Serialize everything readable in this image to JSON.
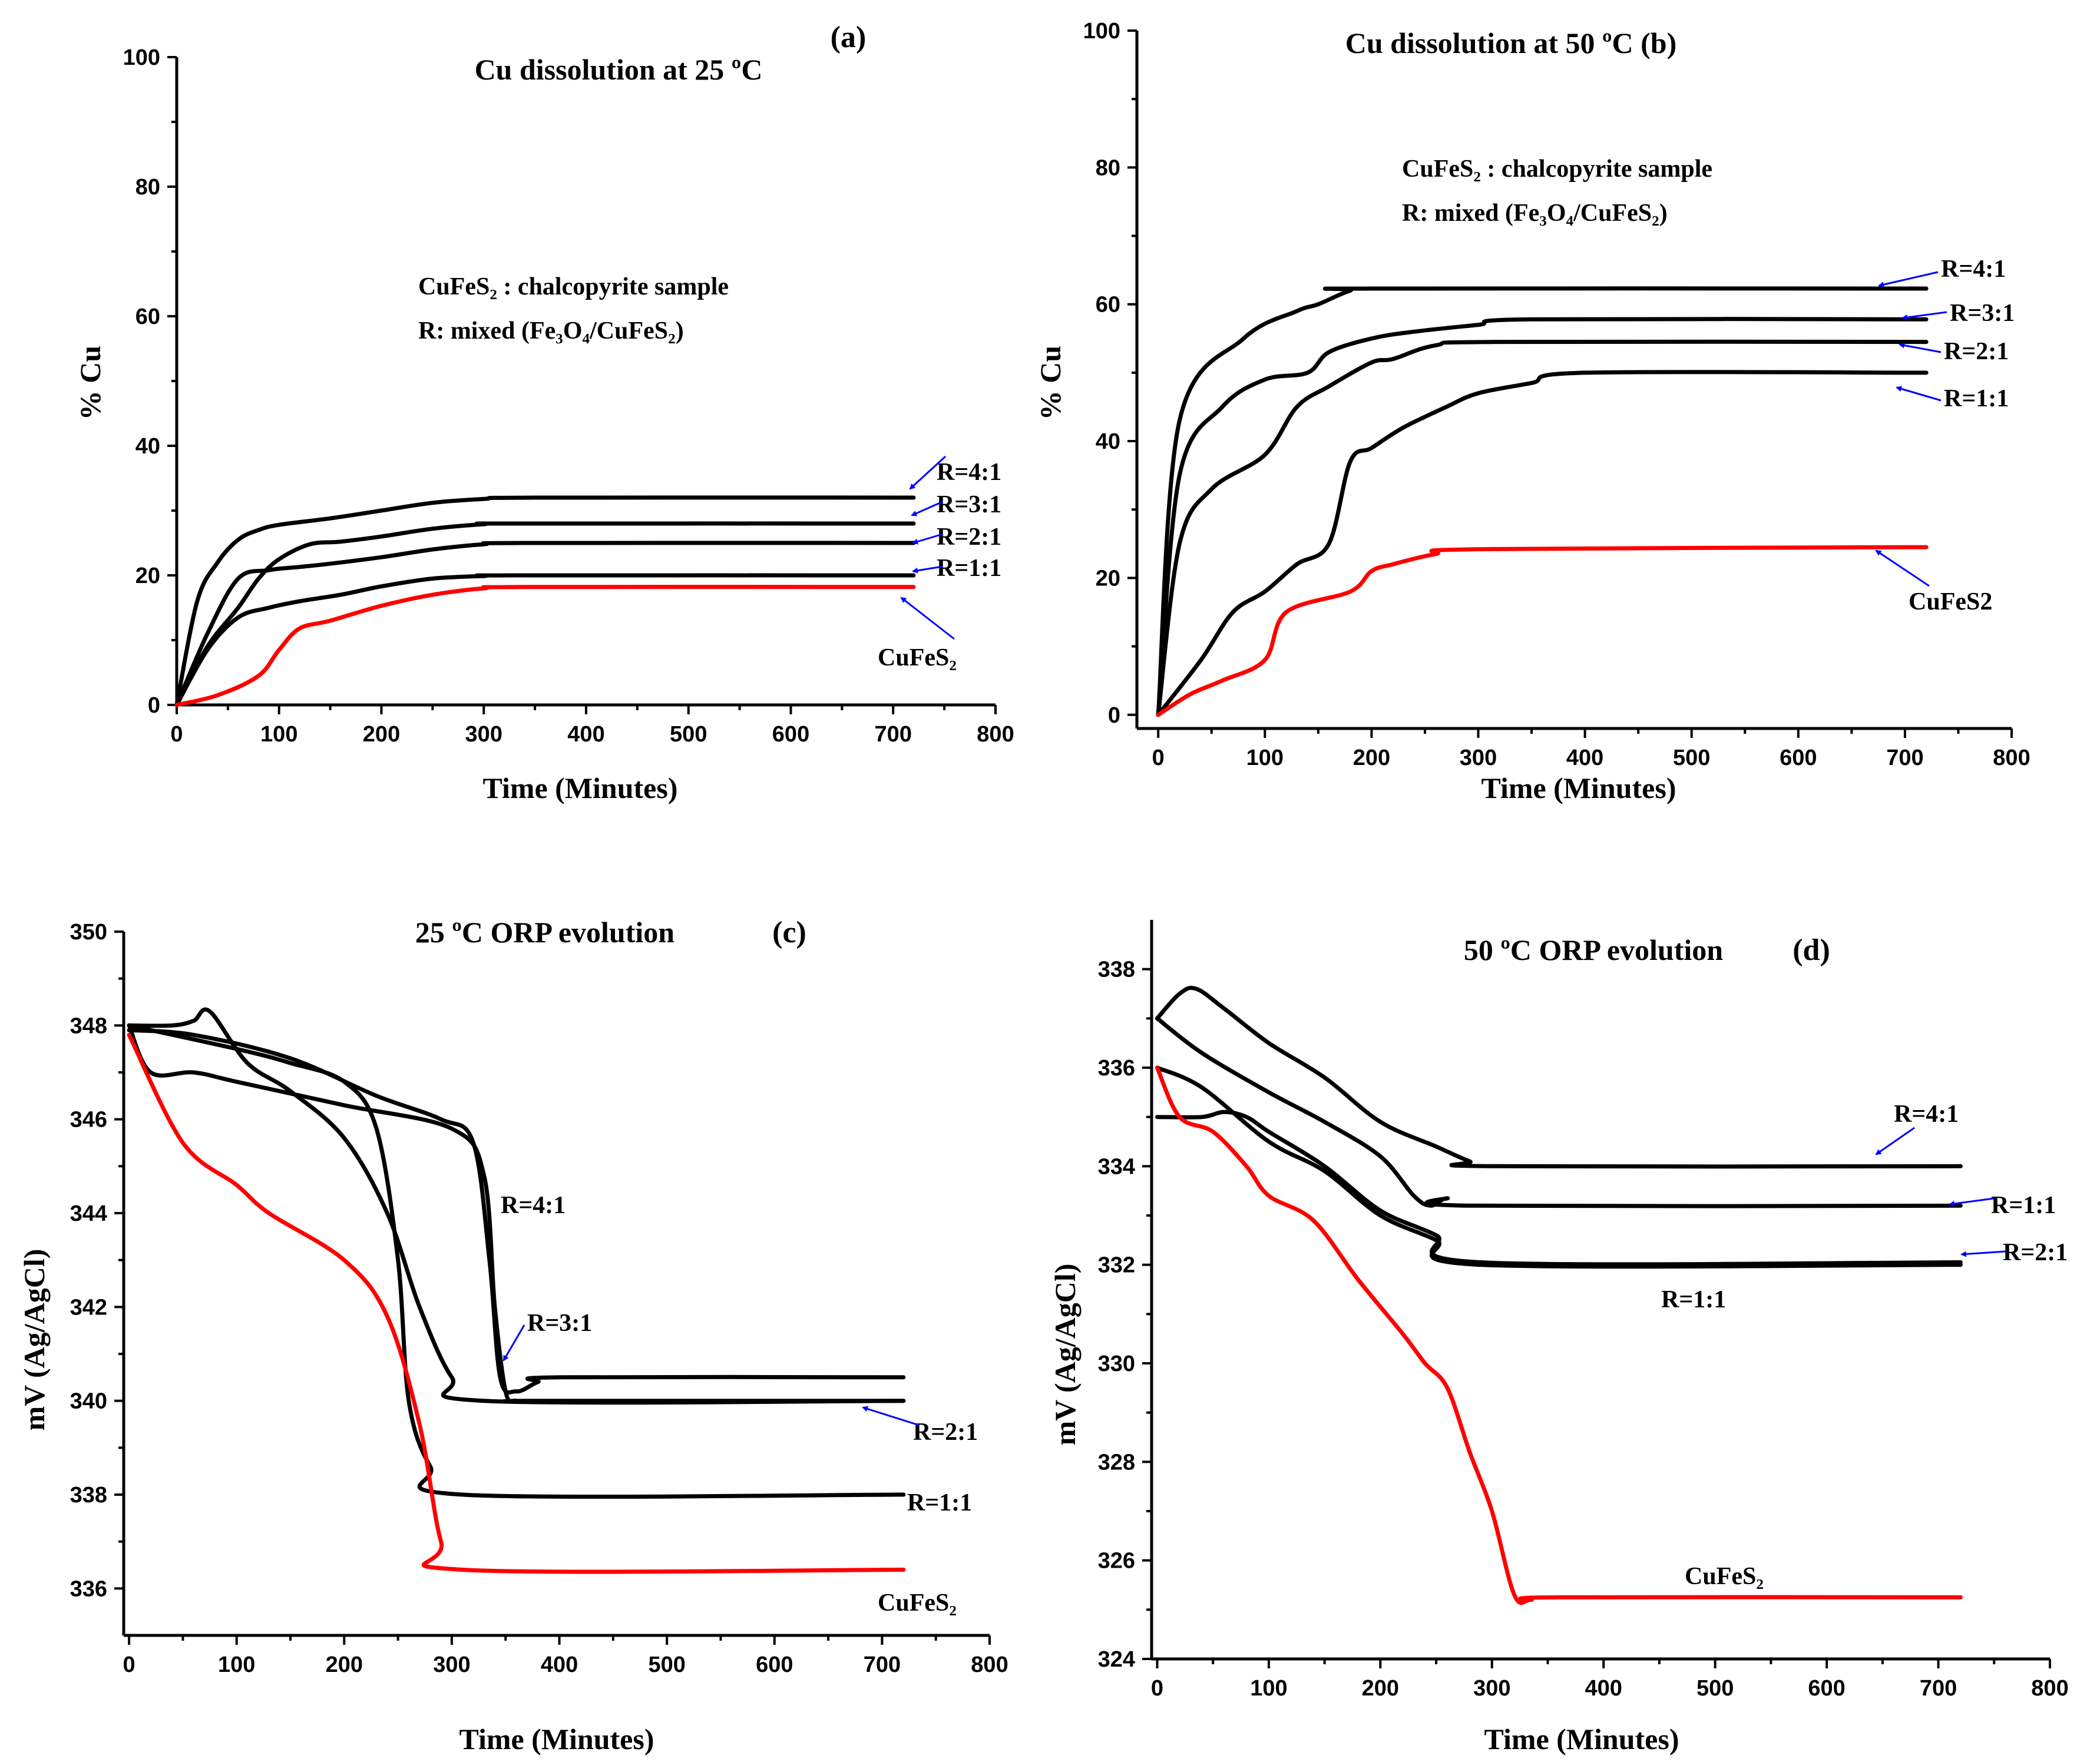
{
  "colors": {
    "black": "#000000",
    "red": "#ff0000",
    "arrow": "#0000ff"
  },
  "chart_data": [
    {
      "id": "a",
      "type": "line",
      "title": "Cu dissolution at 25 ºC",
      "panel_label": "(a)",
      "xlabel": "Time (Minutes)",
      "ylabel": "% Cu",
      "xlim": [
        0,
        800
      ],
      "ylim": [
        0,
        100
      ],
      "xticks": [
        0,
        100,
        200,
        300,
        400,
        500,
        600,
        700,
        800
      ],
      "yticks": [
        0,
        20,
        40,
        60,
        80,
        100
      ],
      "annotations": [
        "CuFeS₂ : chalcopyrite sample",
        "R: mixed (Fe₃O₄/CuFeS₂)"
      ],
      "series": [
        {
          "name": "R=4:1",
          "color": "black",
          "x": [
            0,
            20,
            40,
            60,
            80,
            100,
            150,
            200,
            250,
            300,
            350,
            720
          ],
          "y": [
            0,
            16,
            22,
            25.5,
            27,
            27.8,
            28.8,
            30,
            31.2,
            31.8,
            32,
            32
          ]
        },
        {
          "name": "R=3:1",
          "color": "black",
          "x": [
            0,
            30,
            60,
            80,
            100,
            130,
            160,
            200,
            250,
            300,
            330,
            720
          ],
          "y": [
            0,
            9,
            15,
            19.5,
            22.5,
            24.8,
            25.2,
            26,
            27.2,
            27.9,
            28,
            28
          ]
        },
        {
          "name": "R=2:1",
          "color": "black",
          "x": [
            0,
            30,
            60,
            90,
            120,
            150,
            200,
            250,
            300,
            340,
            720
          ],
          "y": [
            0,
            11,
            19.5,
            20.8,
            21.3,
            21.8,
            22.8,
            24,
            24.8,
            25,
            25
          ]
        },
        {
          "name": "R=1:1",
          "color": "black",
          "x": [
            0,
            30,
            60,
            90,
            120,
            160,
            200,
            250,
            300,
            330,
            720
          ],
          "y": [
            0,
            8.5,
            13.5,
            15,
            16,
            17,
            18.3,
            19.5,
            19.9,
            20,
            20
          ]
        },
        {
          "name": "CuFeS₂",
          "color": "red",
          "x": [
            0,
            40,
            80,
            100,
            120,
            150,
            200,
            250,
            300,
            340,
            720
          ],
          "y": [
            0,
            1.5,
            4.5,
            8.5,
            11.8,
            13,
            15.3,
            17,
            18,
            18.2,
            18.2
          ]
        }
      ],
      "curve_labels": [
        "R=4:1",
        "R=3:1",
        "R=2:1",
        "R=1:1",
        "CuFeS₂"
      ]
    },
    {
      "id": "b",
      "type": "line",
      "title": "Cu dissolution at 50 ºC (b)",
      "xlabel": "Time (Minutes)",
      "ylabel": "% Cu",
      "xlim": [
        -20,
        800
      ],
      "ylim": [
        -2,
        100
      ],
      "xticks": [
        0,
        100,
        200,
        300,
        400,
        500,
        600,
        700,
        800
      ],
      "yticks": [
        0,
        20,
        40,
        60,
        80,
        100
      ],
      "annotations": [
        "CuFeS₂ : chalcopyrite sample",
        "R: mixed (Fe₃O₄/CuFeS₂)"
      ],
      "series": [
        {
          "name": "R=4:1",
          "color": "black",
          "x": [
            0,
            20,
            80,
            130,
            150,
            180,
            200,
            720
          ],
          "y": [
            0,
            43,
            55,
            59,
            60,
            62,
            62.3,
            62.3
          ]
        },
        {
          "name": "R=3:1",
          "color": "black",
          "x": [
            0,
            20,
            60,
            100,
            140,
            160,
            200,
            240,
            300,
            350,
            720
          ],
          "y": [
            0,
            35,
            45,
            49,
            50,
            53,
            55,
            56,
            57,
            57.8,
            57.8
          ]
        },
        {
          "name": "R=2:1",
          "color": "black",
          "x": [
            0,
            20,
            50,
            100,
            130,
            160,
            200,
            220,
            260,
            320,
            720
          ],
          "y": [
            0,
            25,
            33,
            38,
            45,
            48,
            51.5,
            52,
            54,
            54.5,
            54.5
          ]
        },
        {
          "name": "R=1:1",
          "color": "black",
          "x": [
            0,
            40,
            70,
            100,
            130,
            160,
            180,
            200,
            230,
            270,
            300,
            350,
            400,
            720
          ],
          "y": [
            0,
            8,
            15,
            18,
            22,
            25,
            37,
            39,
            42,
            45,
            47,
            48.5,
            50,
            50
          ]
        },
        {
          "name": "CuFeS2",
          "color": "red",
          "x": [
            0,
            30,
            60,
            100,
            120,
            180,
            200,
            220,
            260,
            300,
            720
          ],
          "y": [
            0,
            3,
            5,
            8,
            15,
            18,
            21,
            22,
            23.5,
            24.2,
            24.5
          ]
        }
      ],
      "curve_labels": [
        "R=4:1",
        "R=3:1",
        "R=2:1",
        "R=1:1",
        "CuFeS2"
      ]
    },
    {
      "id": "c",
      "type": "line",
      "title": "25 ºC ORP evolution",
      "panel_label": "(c)",
      "xlabel": "Time (Minutes)",
      "ylabel": "mV (Ag/AgCl)",
      "xlim": [
        -5,
        800
      ],
      "ylim": [
        335,
        350
      ],
      "xticks": [
        0,
        100,
        200,
        300,
        400,
        500,
        600,
        700,
        800
      ],
      "yticks": [
        336,
        338,
        340,
        342,
        344,
        346,
        348,
        350
      ],
      "series": [
        {
          "name": "R=4:1",
          "color": "black",
          "x": [
            0,
            60,
            150,
            230,
            290,
            320,
            335,
            345,
            360,
            380,
            400,
            720
          ],
          "y": [
            347.9,
            347.8,
            347.3,
            346.5,
            346,
            345.5,
            343,
            340.5,
            340.2,
            340.4,
            340.5,
            340.5
          ]
        },
        {
          "name": "R=3:1",
          "color": "black",
          "x": [
            0,
            20,
            60,
            100,
            200,
            300,
            330,
            340,
            350,
            360,
            380,
            720
          ],
          "y": [
            348,
            347,
            347,
            346.8,
            346.3,
            345.8,
            344.8,
            342,
            340.2,
            340,
            340,
            340
          ]
        },
        {
          "name": "R=2:1",
          "color": "black",
          "x": [
            0,
            40,
            60,
            75,
            110,
            150,
            200,
            240,
            270,
            300,
            330,
            720
          ],
          "y": [
            348,
            348,
            348.1,
            348.3,
            347.2,
            346.6,
            345.6,
            344,
            342,
            340.5,
            340,
            340
          ]
        },
        {
          "name": "R=1:1",
          "color": "black",
          "x": [
            0,
            100,
            150,
            200,
            230,
            250,
            260,
            280,
            310,
            720
          ],
          "y": [
            348,
            347.5,
            347.2,
            346.8,
            345.8,
            343,
            340,
            338.6,
            338,
            338
          ]
        },
        {
          "name": "CuFeS₂",
          "color": "red",
          "x": [
            0,
            50,
            100,
            130,
            200,
            240,
            270,
            290,
            310,
            720
          ],
          "y": [
            347.8,
            345.5,
            344.6,
            344,
            343,
            341.8,
            339.5,
            337,
            336.4,
            336.4
          ]
        }
      ],
      "curve_labels": [
        "R=4:1",
        "R=3:1",
        "R=2:1",
        "R=1:1",
        "CuFeS₂"
      ]
    },
    {
      "id": "d",
      "type": "line",
      "title": "50 ºC ORP evolution",
      "panel_label": "(d)",
      "xlabel": "Time (Minutes)",
      "ylabel": "mV (Ag/AgCl)",
      "xlim": [
        -5,
        800
      ],
      "ylim": [
        324,
        339
      ],
      "xticks": [
        0,
        100,
        200,
        300,
        400,
        500,
        600,
        700,
        800
      ],
      "yticks": [
        324,
        326,
        328,
        330,
        332,
        334,
        336,
        338
      ],
      "series": [
        {
          "name": "R=4:1",
          "color": "black",
          "x": [
            0,
            20,
            35,
            60,
            100,
            150,
            200,
            250,
            280,
            300,
            720
          ],
          "y": [
            337,
            337.5,
            337.6,
            337.2,
            336.5,
            335.8,
            334.9,
            334.4,
            334.1,
            334,
            334
          ]
        },
        {
          "name": "R=1:1",
          "color": "black",
          "x": [
            0,
            40,
            100,
            150,
            200,
            230,
            245,
            260,
            280,
            720
          ],
          "y": [
            337,
            336.3,
            335.5,
            334.9,
            334.2,
            333.4,
            333.2,
            333.35,
            333.2,
            333.2
          ]
        },
        {
          "name": "R=2:1",
          "color": "black",
          "x": [
            0,
            40,
            60,
            80,
            100,
            150,
            200,
            250,
            290,
            720
          ],
          "y": [
            335,
            335,
            335.1,
            335,
            334.7,
            334,
            333.1,
            332.6,
            332.05,
            332.05
          ]
        },
        {
          "name": "R=1:1",
          "color": "black",
          "x": [
            0,
            40,
            100,
            150,
            200,
            250,
            290,
            720
          ],
          "y": [
            336,
            335.6,
            334.5,
            333.9,
            333,
            332.5,
            332,
            332
          ]
        },
        {
          "name": "CuFeS₂",
          "color": "red",
          "x": [
            0,
            20,
            50,
            80,
            100,
            140,
            180,
            220,
            240,
            260,
            280,
            300,
            320,
            335,
            360,
            720
          ],
          "y": [
            336,
            335,
            334.7,
            334,
            333.4,
            332.9,
            331.7,
            330.6,
            330,
            329.5,
            328.2,
            327,
            325.3,
            325.2,
            325.25,
            325.25
          ]
        }
      ],
      "curve_labels": [
        "R=4:1",
        "R=1:1",
        "R=2:1",
        "R=1:1",
        "CuFeS₂"
      ]
    }
  ]
}
